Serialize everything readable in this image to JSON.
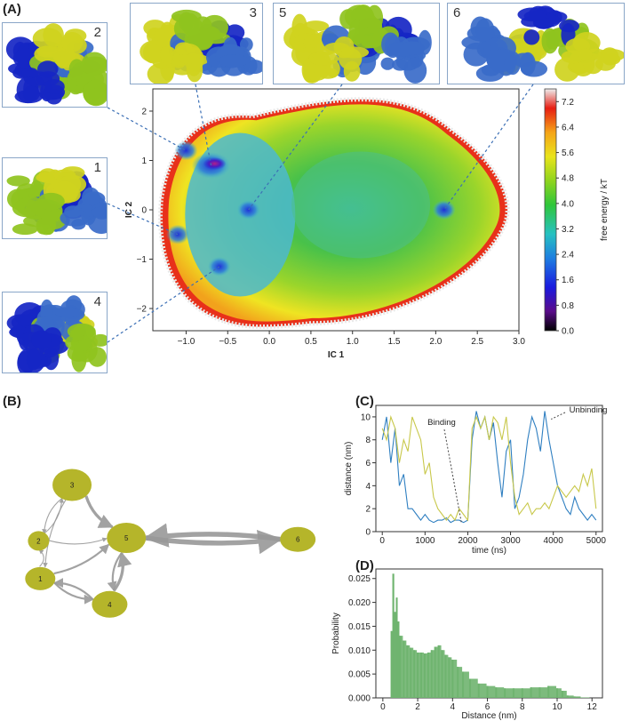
{
  "panels": {
    "a": "(A)",
    "b": "(B)",
    "c": "(C)",
    "d": "(D)"
  },
  "colors": {
    "blue_light": "#3a6bc9",
    "blue_dark": "#1626c4",
    "yellow": "#cfd21e",
    "green": "#8fc31e",
    "series_blue": "#2f7fc1",
    "series_yellow": "#c8c84a",
    "hist_green": "#6fb46f",
    "node": "#b5b52a",
    "edge": "#999999"
  },
  "structures": [
    {
      "label": "2",
      "colors": [
        "blue_dark",
        "green",
        "blue_light",
        "yellow"
      ]
    },
    {
      "label": "1",
      "colors": [
        "green",
        "blue_light",
        "blue_dark",
        "yellow"
      ]
    },
    {
      "label": "4",
      "colors": [
        "blue_dark",
        "green",
        "yellow",
        "blue_light"
      ]
    },
    {
      "label": "3",
      "colors": [
        "yellow",
        "blue_light",
        "blue_dark",
        "green"
      ]
    },
    {
      "label": "5",
      "colors": [
        "yellow",
        "blue_light",
        "blue_dark",
        "green"
      ]
    },
    {
      "label": "6",
      "colors": [
        "blue_light",
        "yellow",
        "green",
        "blue_dark"
      ]
    }
  ],
  "chart_data": [
    {
      "id": "A",
      "type": "heatmap",
      "xlabel": "IC 1",
      "ylabel": "IC 2",
      "xlim": [
        -1.4,
        3.0
      ],
      "ylim": [
        -2.45,
        2.45
      ],
      "xticks": [
        "−1.0",
        "−0.5",
        "0.0",
        "0.5",
        "1.0",
        "1.5",
        "2.0",
        "2.5",
        "3.0"
      ],
      "xtick_values": [
        -1.0,
        -0.5,
        0.0,
        0.5,
        1.0,
        1.5,
        2.0,
        2.5,
        3.0
      ],
      "yticks": [
        "−2",
        "−1",
        "0",
        "1",
        "2"
      ],
      "ytick_values": [
        -2,
        -1,
        0,
        1,
        2
      ],
      "colorbar": {
        "label": "free energy / kT",
        "range": [
          0.0,
          7.6
        ],
        "ticks": [
          "0.0",
          "0.8",
          "1.6",
          "2.4",
          "3.2",
          "4.0",
          "4.8",
          "5.6",
          "6.4",
          "7.2"
        ],
        "tick_values": [
          0.0,
          0.8,
          1.6,
          2.4,
          3.2,
          4.0,
          4.8,
          5.6,
          6.4,
          7.2
        ]
      },
      "minima": [
        {
          "state": "2",
          "x": -1.0,
          "y": 1.2
        },
        {
          "state": "3",
          "x": -0.7,
          "y": 0.9
        },
        {
          "state": "5",
          "x": -0.25,
          "y": 0.0
        },
        {
          "state": "1",
          "x": -1.1,
          "y": -0.5
        },
        {
          "state": "4",
          "x": -0.6,
          "y": -1.15
        },
        {
          "state": "6",
          "x": 2.1,
          "y": 0.0
        }
      ]
    },
    {
      "id": "B",
      "type": "network",
      "nodes": [
        {
          "id": "3",
          "x": 0.5,
          "y": 0.15
        },
        {
          "id": "2",
          "x": 0.1,
          "y": 0.52
        },
        {
          "id": "5",
          "x": 1.15,
          "y": 0.5
        },
        {
          "id": "6",
          "x": 3.2,
          "y": 0.51
        },
        {
          "id": "1",
          "x": 0.12,
          "y": 0.77
        },
        {
          "id": "4",
          "x": 0.95,
          "y": 0.94
        }
      ],
      "edges": [
        {
          "from": "5",
          "to": "6",
          "weight": 5
        },
        {
          "from": "6",
          "to": "5",
          "weight": 5
        },
        {
          "from": "3",
          "to": "5",
          "weight": 3
        },
        {
          "from": "3",
          "to": "2",
          "weight": 1
        },
        {
          "from": "2",
          "to": "3",
          "weight": 1
        },
        {
          "from": "3",
          "to": "1",
          "weight": 1
        },
        {
          "from": "2",
          "to": "5",
          "weight": 1
        },
        {
          "from": "1",
          "to": "2",
          "weight": 1
        },
        {
          "from": "1",
          "to": "5",
          "weight": 2
        },
        {
          "from": "1",
          "to": "4",
          "weight": 2
        },
        {
          "from": "4",
          "to": "1",
          "weight": 2
        },
        {
          "from": "4",
          "to": "5",
          "weight": 3
        },
        {
          "from": "5",
          "to": "4",
          "weight": 2
        }
      ]
    },
    {
      "id": "C",
      "type": "line",
      "xlabel": "time (ns)",
      "ylabel": "distance (nm)",
      "xlim": [
        -150,
        5150
      ],
      "ylim": [
        0,
        11
      ],
      "xticks": [
        0,
        1000,
        2000,
        3000,
        4000,
        5000
      ],
      "yticks": [
        0,
        2,
        4,
        6,
        8,
        10
      ],
      "annotations": [
        {
          "text": "Binding",
          "x": 1850,
          "y": 0.8
        },
        {
          "text": "Unbinding",
          "x": 3950,
          "y": 9.8
        }
      ],
      "series": [
        {
          "color_key": "series_blue",
          "x": [
            0,
            100,
            200,
            300,
            400,
            500,
            600,
            700,
            800,
            900,
            1000,
            1100,
            1200,
            1300,
            1400,
            1500,
            1600,
            1700,
            1800,
            1900,
            2000,
            2100,
            2200,
            2300,
            2400,
            2500,
            2600,
            2700,
            2800,
            2900,
            3000,
            3100,
            3200,
            3300,
            3400,
            3500,
            3600,
            3700,
            3800,
            3900,
            4000,
            4100,
            4200,
            4300,
            4400,
            4500,
            4600,
            4700,
            4800,
            4900,
            5000
          ],
          "y": [
            8,
            10,
            6,
            9,
            4,
            5,
            2,
            2,
            1.5,
            1,
            1.5,
            1,
            0.8,
            1,
            1,
            1.2,
            0.8,
            1,
            1,
            0.8,
            1,
            8,
            10.5,
            9,
            10,
            8,
            9.5,
            6,
            3,
            7,
            8,
            2,
            3,
            5,
            8,
            10,
            9,
            7,
            10.5,
            8,
            6,
            4,
            3,
            2,
            1.5,
            3,
            2,
            1.5,
            1,
            1.5,
            1
          ]
        },
        {
          "color_key": "series_yellow",
          "x": [
            0,
            100,
            200,
            300,
            400,
            500,
            600,
            700,
            800,
            900,
            1000,
            1100,
            1200,
            1300,
            1400,
            1500,
            1600,
            1700,
            1800,
            1900,
            2000,
            2100,
            2200,
            2300,
            2400,
            2500,
            2600,
            2700,
            2800,
            2900,
            3000,
            3100,
            3200,
            3300,
            3400,
            3500,
            3600,
            3700,
            3800,
            3900,
            4000,
            4100,
            4200,
            4300,
            4400,
            4500,
            4600,
            4700,
            4800,
            4900,
            5000
          ],
          "y": [
            9,
            8,
            10,
            9,
            6,
            8,
            7,
            10,
            9,
            8,
            5,
            6,
            3,
            2,
            1.5,
            1,
            1.5,
            1,
            2,
            1.5,
            1,
            9,
            10,
            9,
            10,
            8,
            10,
            9.5,
            8,
            10,
            6,
            3,
            1.5,
            2,
            2.5,
            1.5,
            2,
            2,
            2.5,
            2,
            3,
            4,
            3.5,
            3,
            3.5,
            4,
            3.5,
            5,
            4,
            5.5,
            2
          ]
        }
      ]
    },
    {
      "id": "D",
      "type": "bar",
      "xlabel": "Distance (nm)",
      "ylabel": "Probability",
      "xlim": [
        -0.4,
        12.6
      ],
      "ylim": [
        0,
        0.027
      ],
      "xticks": [
        0,
        2,
        4,
        6,
        8,
        10,
        12
      ],
      "yticks": [
        "0.000",
        "0.005",
        "0.010",
        "0.015",
        "0.020",
        "0.025"
      ],
      "ytick_values": [
        0.0,
        0.005,
        0.01,
        0.015,
        0.02,
        0.025
      ],
      "bin_width": 0.1,
      "bin_centers": [
        0.5,
        0.6,
        0.7,
        0.8,
        0.9,
        1.0,
        1.2,
        1.4,
        1.6,
        1.8,
        2.0,
        2.2,
        2.4,
        2.6,
        2.8,
        3.0,
        3.2,
        3.4,
        3.6,
        3.8,
        4.0,
        4.3,
        4.6,
        5.0,
        5.5,
        6.0,
        6.5,
        7.0,
        7.5,
        8.0,
        8.5,
        9.0,
        9.5,
        10.0,
        10.3,
        10.6,
        11.0,
        11.4,
        11.8
      ],
      "values": [
        0.014,
        0.026,
        0.018,
        0.021,
        0.016,
        0.013,
        0.012,
        0.011,
        0.0105,
        0.01,
        0.0095,
        0.0095,
        0.0093,
        0.0095,
        0.01,
        0.0107,
        0.011,
        0.01,
        0.009,
        0.0085,
        0.008,
        0.0065,
        0.0055,
        0.004,
        0.003,
        0.0025,
        0.0022,
        0.002,
        0.002,
        0.002,
        0.0022,
        0.0022,
        0.0025,
        0.002,
        0.0015,
        0.0005,
        0.0003,
        0.0001,
        0.0001
      ]
    }
  ]
}
